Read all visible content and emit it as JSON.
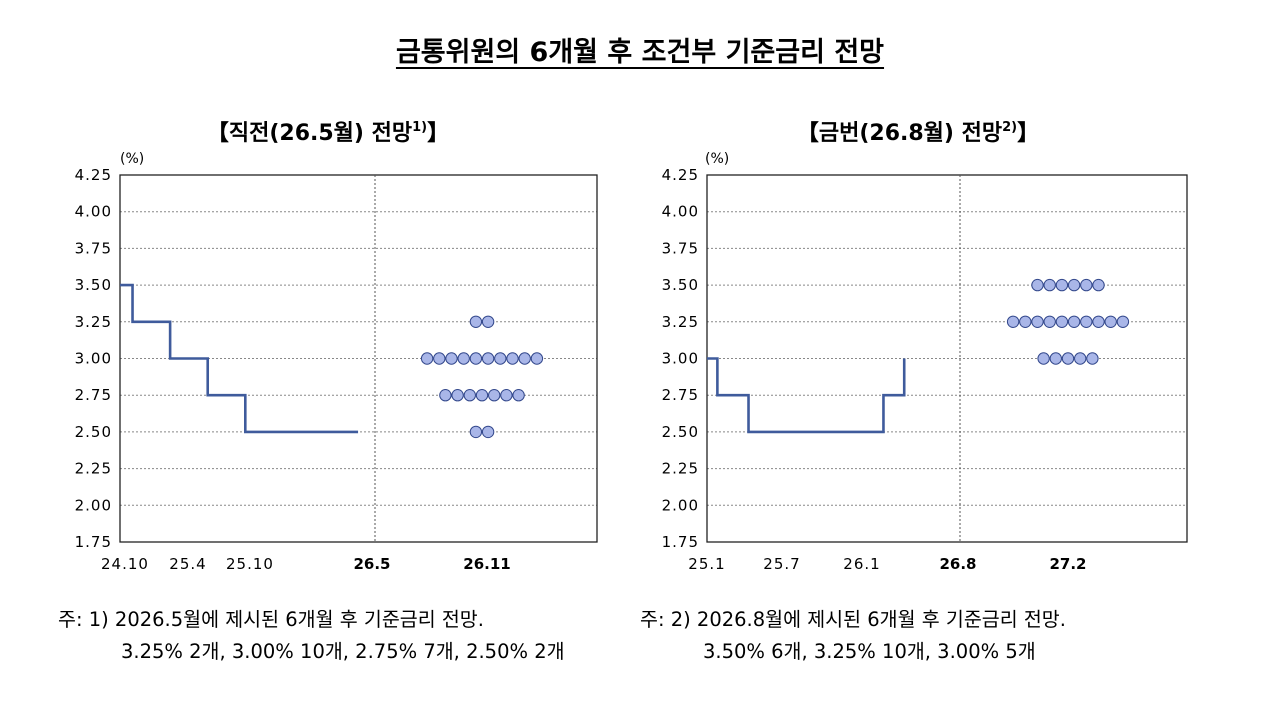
{
  "main_title": "금통위원의 6개월 후 조건부 기준금리 전망",
  "notes": [
    {
      "line1": "주: 1) 2026.5월에 제시된 6개월 후 기준금리 전망.",
      "line2": "3.25% 2개,  3.00% 10개,  2.75% 7개,  2.50% 2개"
    },
    {
      "line1": "주: 2) 2026.8월에 제시된 6개월 후 기준금리 전망.",
      "line2": "3.50%  6개,   3.25% 10개,  3.00% 5개"
    }
  ],
  "colors": {
    "line": "#3f5b9c",
    "dot_fill": "#a9b6e8",
    "dot_stroke": "#33488c"
  },
  "chart_data": [
    {
      "type": "scatter",
      "title": "【직전(26.5월) 전망",
      "title_sup": "1)",
      "title_end": "】",
      "unit": "(%)",
      "ylim": [
        1.75,
        4.25
      ],
      "yticks": [
        "4.25",
        "4.00",
        "3.75",
        "3.50",
        "3.25",
        "3.00",
        "2.75",
        "2.50",
        "2.25",
        "2.00",
        "1.75"
      ],
      "xticks": [
        {
          "label": "24.10",
          "bold": false
        },
        {
          "label": "25.4",
          "bold": false
        },
        {
          "label": "25.10",
          "bold": false
        },
        {
          "label": "26.5",
          "bold": true
        },
        {
          "label": "26.11",
          "bold": true
        }
      ],
      "rate_path": [
        {
          "date": "2024-10",
          "rate": 3.5
        },
        {
          "date": "2024-11",
          "rate": 3.25
        },
        {
          "date": "2025-02",
          "rate": 3.0
        },
        {
          "date": "2025-05",
          "rate": 2.75
        },
        {
          "date": "2025-08",
          "rate": 2.5
        },
        {
          "date": "2026-05",
          "rate": 2.5
        }
      ],
      "forecast_dots": [
        {
          "rate": 3.25,
          "count": 2
        },
        {
          "rate": 3.0,
          "count": 10
        },
        {
          "rate": 2.75,
          "count": 7
        },
        {
          "rate": 2.5,
          "count": 2
        }
      ]
    },
    {
      "type": "scatter",
      "title": "【금번(26.8월) 전망",
      "title_sup": "2)",
      "title_end": "】",
      "unit": "(%)",
      "ylim": [
        1.75,
        4.25
      ],
      "yticks": [
        "4.25",
        "4.00",
        "3.75",
        "3.50",
        "3.25",
        "3.00",
        "2.75",
        "2.50",
        "2.25",
        "2.00",
        "1.75"
      ],
      "xticks": [
        {
          "label": "25.1",
          "bold": false
        },
        {
          "label": "25.7",
          "bold": false
        },
        {
          "label": "26.1",
          "bold": false
        },
        {
          "label": "26.8",
          "bold": true
        },
        {
          "label": "27.2",
          "bold": true
        }
      ],
      "rate_path": [
        {
          "date": "2025-01",
          "rate": 3.0
        },
        {
          "date": "2025-02",
          "rate": 2.75
        },
        {
          "date": "2025-05",
          "rate": 2.5
        },
        {
          "date": "2026-06",
          "rate": 2.75
        },
        {
          "date": "2026-08",
          "rate": 3.0
        }
      ],
      "forecast_dots": [
        {
          "rate": 3.5,
          "count": 6
        },
        {
          "rate": 3.25,
          "count": 10
        },
        {
          "rate": 3.0,
          "count": 5
        }
      ]
    }
  ]
}
